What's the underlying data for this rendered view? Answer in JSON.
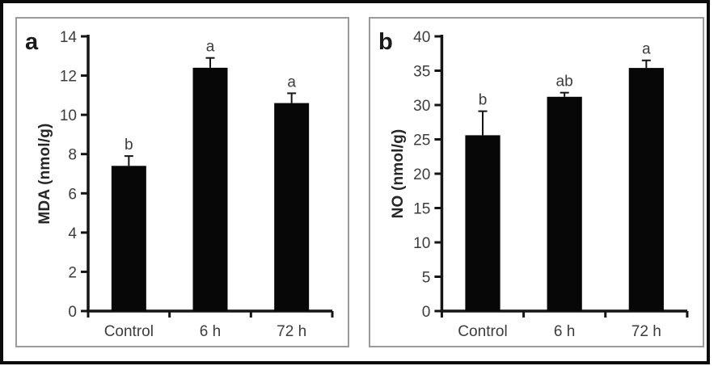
{
  "figure": {
    "background": "#ffffff",
    "outer_border_color": "#0b0b0b",
    "panel_border_color": "#9b9b9b",
    "axis_color": "#151515",
    "bar_color": "#070707",
    "text_color": "#3c3c3c"
  },
  "chart_data": [
    {
      "type": "bar",
      "panel_label": "a",
      "title": "",
      "xlabel": "",
      "ylabel": "MDA (nmol/g)",
      "categories": [
        "Control",
        "6 h",
        "72 h"
      ],
      "values": [
        7.4,
        12.4,
        10.6
      ],
      "errors": [
        0.5,
        0.5,
        0.5
      ],
      "sig_letters": [
        "b",
        "a",
        "a"
      ],
      "ylim": [
        0,
        14
      ],
      "ytick_step": 2,
      "grid": false,
      "legend": false,
      "bar_fill": "#070707",
      "error_bars": "upper"
    },
    {
      "type": "bar",
      "panel_label": "b",
      "title": "",
      "xlabel": "",
      "ylabel": "NO (nmol/g)",
      "categories": [
        "Control",
        "6 h",
        "72 h"
      ],
      "values": [
        25.6,
        31.2,
        35.4
      ],
      "errors": [
        3.5,
        0.6,
        1.1
      ],
      "sig_letters": [
        "b",
        "ab",
        "a"
      ],
      "ylim": [
        0,
        40
      ],
      "ytick_step": 5,
      "grid": false,
      "legend": false,
      "bar_fill": "#070707",
      "error_bars": "upper"
    }
  ]
}
